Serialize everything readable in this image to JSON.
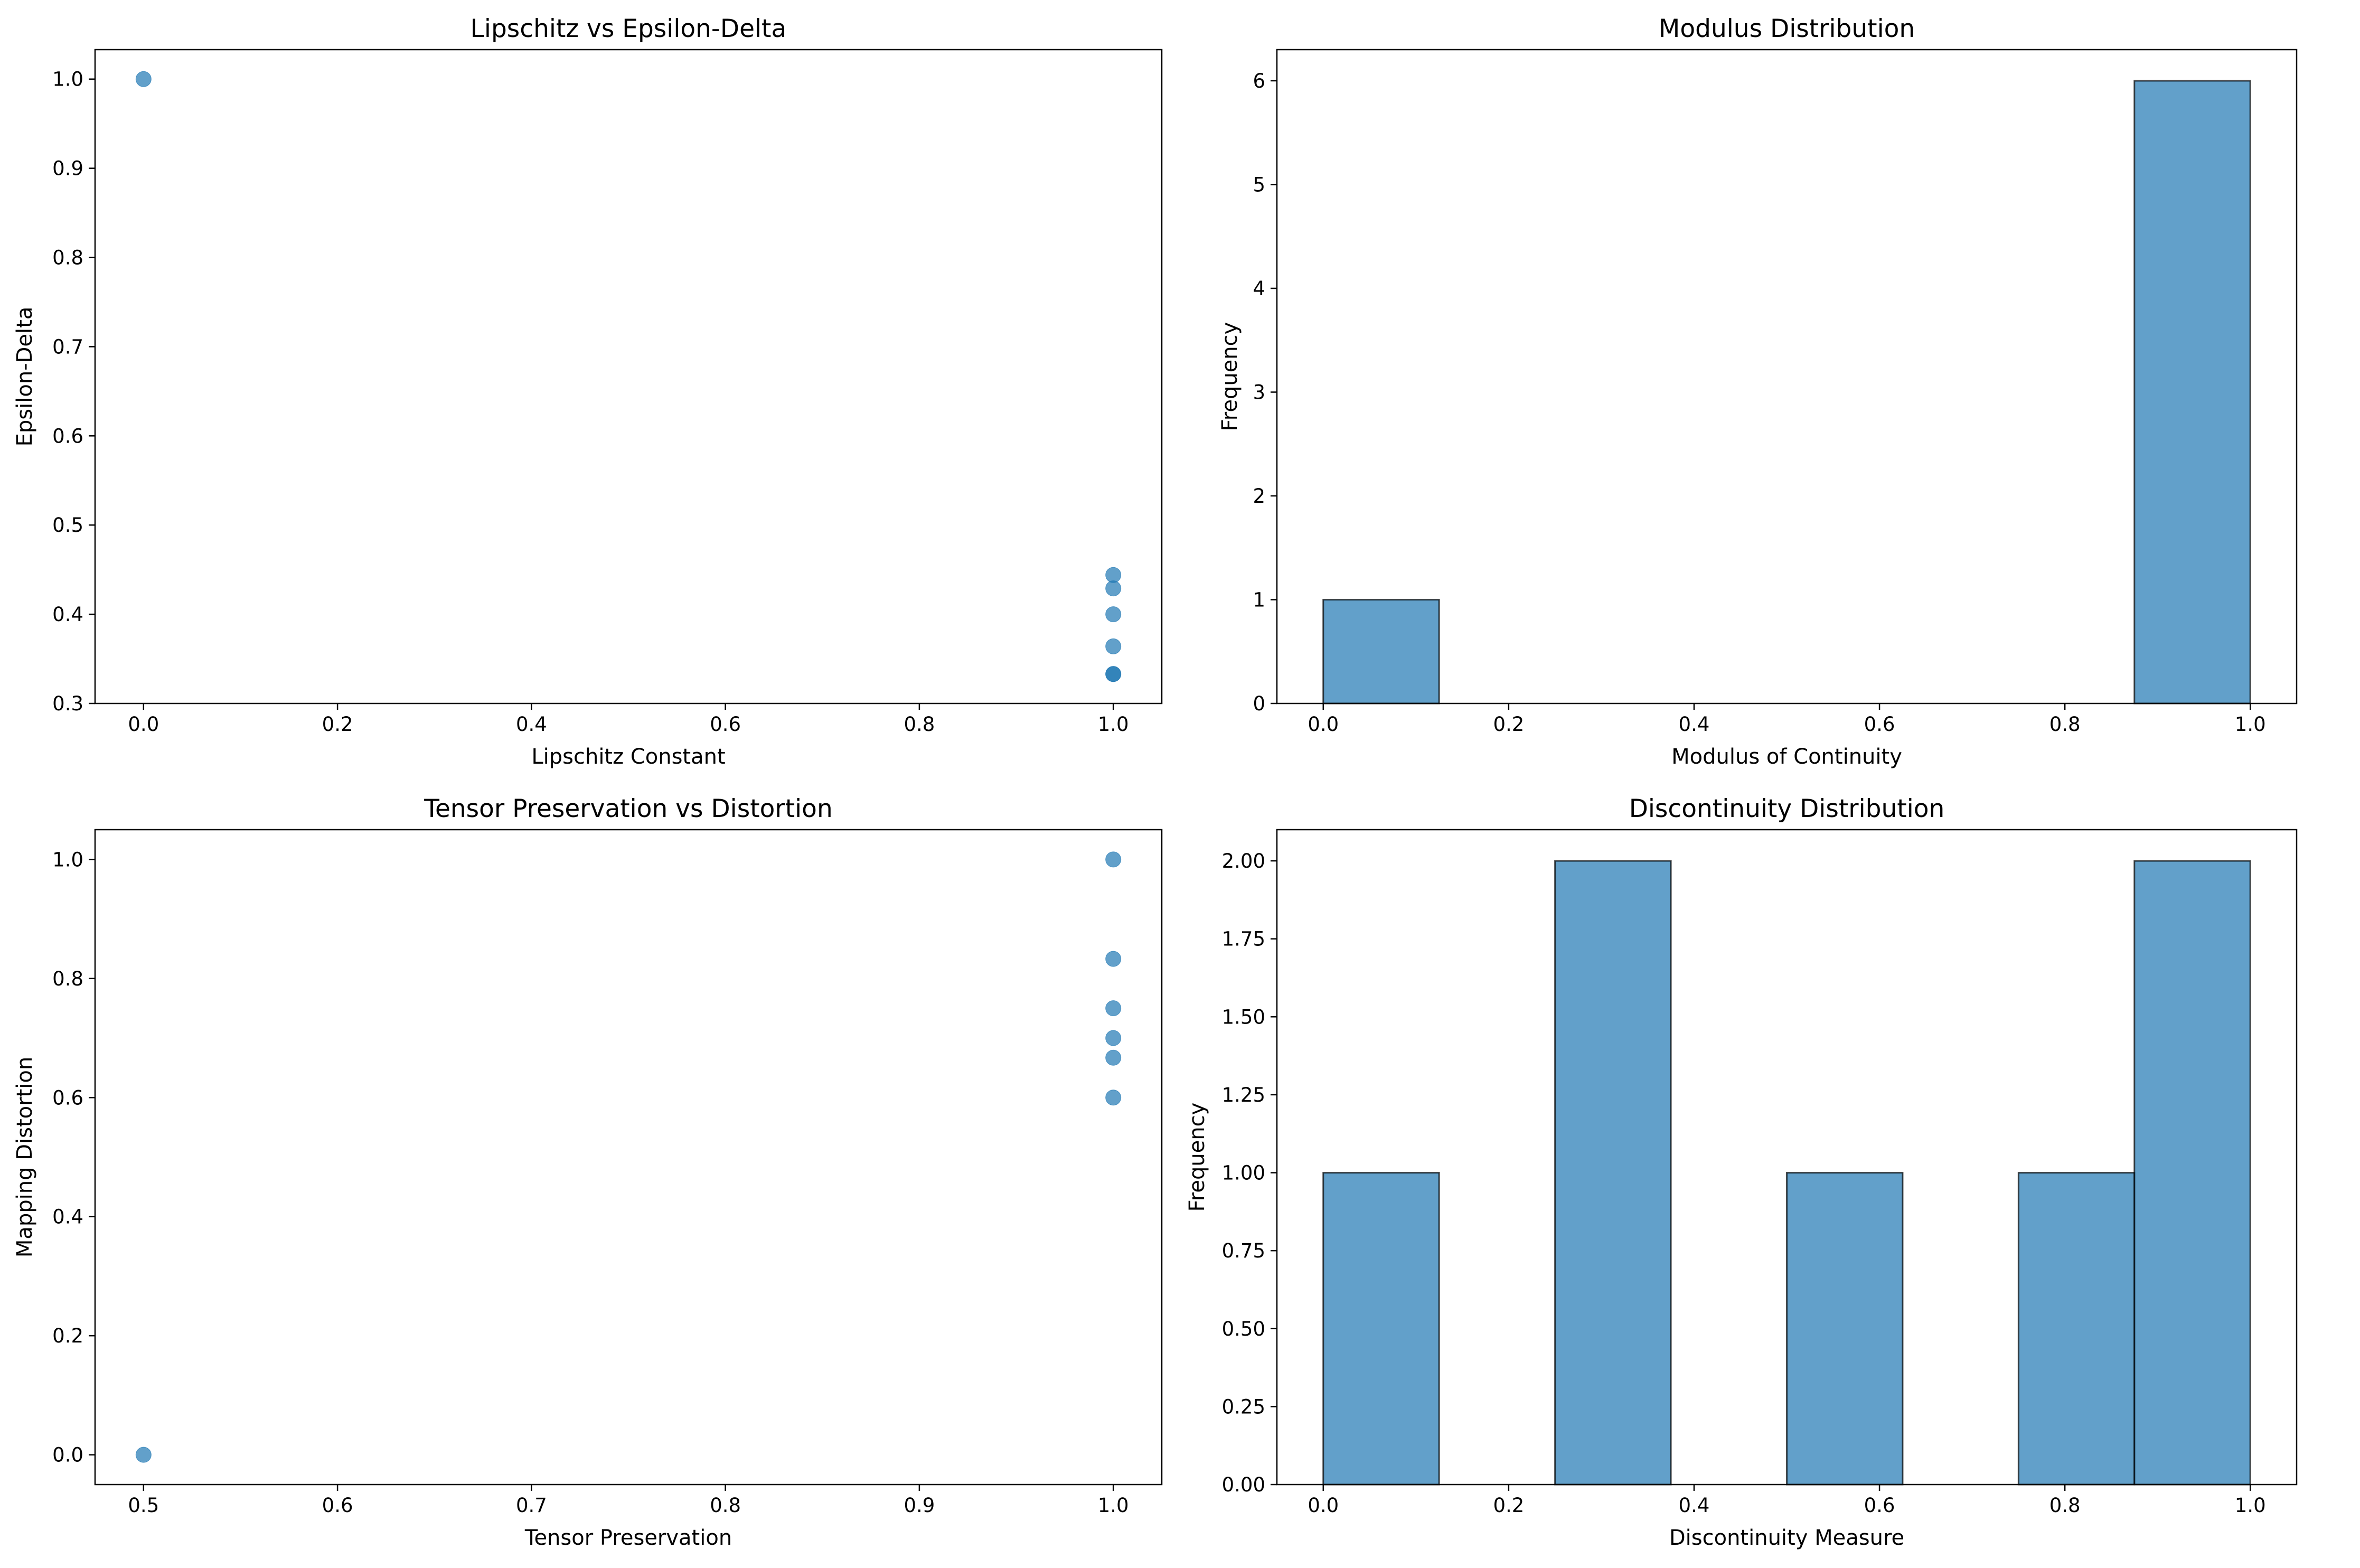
{
  "chart_data": [
    {
      "type": "scatter",
      "title": "Lipschitz vs Epsilon-Delta",
      "xlabel": "Lipschitz Constant",
      "ylabel": "Epsilon-Delta",
      "xlim": [
        -0.05,
        1.05
      ],
      "ylim": [
        0.3,
        1.033
      ],
      "xticks": [
        0.0,
        0.2,
        0.4,
        0.6,
        0.8,
        1.0
      ],
      "xtick_labels": [
        "0.0",
        "0.2",
        "0.4",
        "0.6",
        "0.8",
        "1.0"
      ],
      "yticks": [
        0.3,
        0.4,
        0.5,
        0.6,
        0.7,
        0.8,
        0.9,
        1.0
      ],
      "ytick_labels": [
        "0.3",
        "0.4",
        "0.5",
        "0.6",
        "0.7",
        "0.8",
        "0.9",
        "1.0"
      ],
      "grid": false,
      "points": [
        {
          "x": 0.0,
          "y": 1.0
        },
        {
          "x": 1.0,
          "y": 0.444
        },
        {
          "x": 1.0,
          "y": 0.429
        },
        {
          "x": 1.0,
          "y": 0.4
        },
        {
          "x": 1.0,
          "y": 0.364
        },
        {
          "x": 1.0,
          "y": 0.333
        },
        {
          "x": 1.0,
          "y": 0.333
        }
      ],
      "color": "#1f77b4"
    },
    {
      "type": "bar",
      "subtype": "histogram",
      "title": "Modulus Distribution",
      "xlabel": "Modulus of Continuity",
      "ylabel": "Frequency",
      "xlim": [
        -0.05,
        1.05
      ],
      "ylim": [
        0,
        6.3
      ],
      "xticks": [
        0.0,
        0.2,
        0.4,
        0.6,
        0.8,
        1.0
      ],
      "xtick_labels": [
        "0.0",
        "0.2",
        "0.4",
        "0.6",
        "0.8",
        "1.0"
      ],
      "yticks": [
        0,
        1,
        2,
        3,
        4,
        5,
        6
      ],
      "ytick_labels": [
        "0",
        "1",
        "2",
        "3",
        "4",
        "5",
        "6"
      ],
      "grid": false,
      "bins": [
        0.0,
        0.125,
        0.25,
        0.375,
        0.5,
        0.625,
        0.75,
        0.875,
        1.0
      ],
      "counts": [
        1,
        0,
        0,
        0,
        0,
        0,
        0,
        6
      ],
      "color": "#1f77b4"
    },
    {
      "type": "scatter",
      "title": "Tensor Preservation vs Distortion",
      "xlabel": "Tensor Preservation",
      "ylabel": "Mapping Distortion",
      "xlim": [
        0.475,
        1.025
      ],
      "ylim": [
        -0.05,
        1.05
      ],
      "xticks": [
        0.5,
        0.6,
        0.7,
        0.8,
        0.9,
        1.0
      ],
      "xtick_labels": [
        "0.5",
        "0.6",
        "0.7",
        "0.8",
        "0.9",
        "1.0"
      ],
      "yticks": [
        0.0,
        0.2,
        0.4,
        0.6,
        0.8,
        1.0
      ],
      "ytick_labels": [
        "0.0",
        "0.2",
        "0.4",
        "0.6",
        "0.8",
        "1.0"
      ],
      "grid": false,
      "points": [
        {
          "x": 0.5,
          "y": 0.0
        },
        {
          "x": 1.0,
          "y": 1.0
        },
        {
          "x": 1.0,
          "y": 0.833
        },
        {
          "x": 1.0,
          "y": 0.75
        },
        {
          "x": 1.0,
          "y": 0.7
        },
        {
          "x": 1.0,
          "y": 0.667
        },
        {
          "x": 1.0,
          "y": 0.6
        }
      ],
      "color": "#1f77b4"
    },
    {
      "type": "bar",
      "subtype": "histogram",
      "title": "Discontinuity Distribution",
      "xlabel": "Discontinuity Measure",
      "ylabel": "Frequency",
      "xlim": [
        -0.05,
        1.05
      ],
      "ylim": [
        0,
        2.1
      ],
      "xticks": [
        0.0,
        0.2,
        0.4,
        0.6,
        0.8,
        1.0
      ],
      "xtick_labels": [
        "0.0",
        "0.2",
        "0.4",
        "0.6",
        "0.8",
        "1.0"
      ],
      "yticks": [
        0.0,
        0.25,
        0.5,
        0.75,
        1.0,
        1.25,
        1.5,
        1.75,
        2.0
      ],
      "ytick_labels": [
        "0.00",
        "0.25",
        "0.50",
        "0.75",
        "1.00",
        "1.25",
        "1.50",
        "1.75",
        "2.00"
      ],
      "grid": false,
      "bins": [
        0.0,
        0.125,
        0.25,
        0.375,
        0.5,
        0.625,
        0.75,
        0.875,
        1.0
      ],
      "counts": [
        1,
        0,
        2,
        0,
        1,
        0,
        1,
        2
      ],
      "color": "#1f77b4"
    }
  ]
}
